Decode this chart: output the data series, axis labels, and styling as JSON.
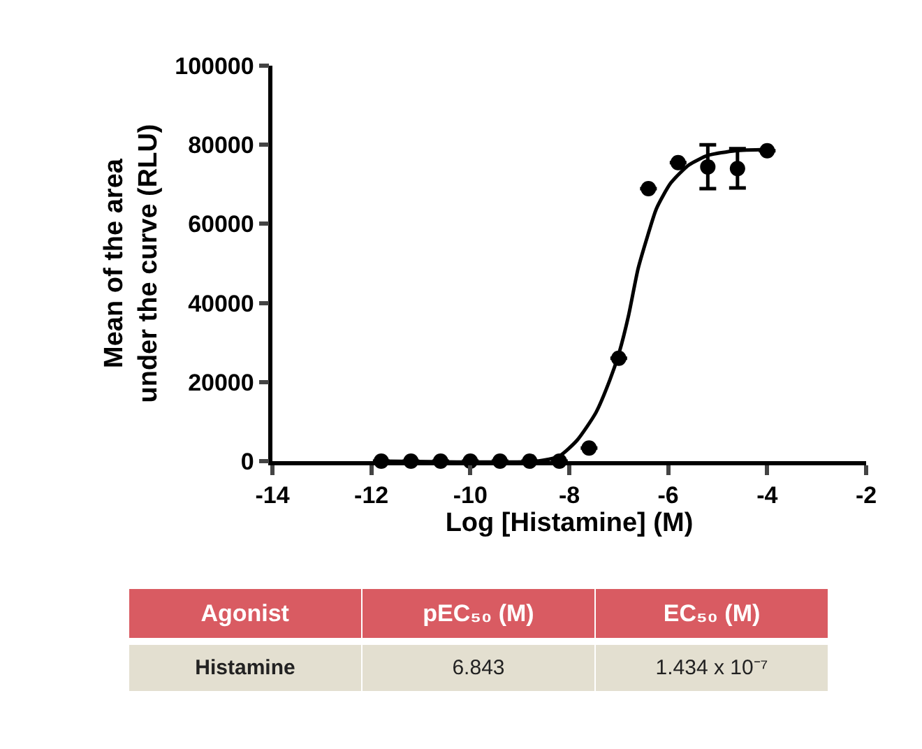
{
  "chart_data": {
    "type": "scatter",
    "xlabel": "Log [Histamine] (M)",
    "ylabel": "Mean of the area\nunder the curve (RLU)",
    "xlim": [
      -14,
      -2
    ],
    "xticks": [
      -14,
      -12,
      -10,
      -8,
      -6,
      -4,
      -2
    ],
    "ylim": [
      0,
      100000
    ],
    "yticks": [
      0,
      20000,
      40000,
      60000,
      80000,
      100000
    ],
    "marker": "circle",
    "series": [
      {
        "color": "#000000",
        "x": [
          -11.8,
          -11.2,
          -10.6,
          -10.0,
          -9.4,
          -8.8,
          -8.2,
          -7.6,
          -7.0,
          -6.4,
          -5.8,
          -5.2,
          -4.6,
          -4.0
        ],
        "values": [
          0,
          0,
          0,
          0,
          0,
          0,
          0,
          3300,
          26000,
          68900,
          75500,
          74400,
          74000,
          78500
        ],
        "errors": [
          null,
          null,
          null,
          null,
          null,
          null,
          null,
          null,
          null,
          null,
          null,
          [
            68900,
            80000
          ],
          [
            69100,
            79000
          ],
          null
        ]
      },
      {
        "type": "line",
        "color": "#000000",
        "line_style": "solid",
        "marker": "none",
        "x": [
          -11.8,
          -8.64,
          -8.21,
          -7.84,
          -7.46,
          -7.18,
          -6.99,
          -6.8,
          -6.61,
          -6.42,
          -6.24,
          -5.95,
          -5.58,
          -5.2,
          -4.64,
          -4.0
        ],
        "values": [
          0,
          0,
          1200,
          5300,
          12300,
          20500,
          27500,
          36900,
          48600,
          56800,
          63800,
          70300,
          74900,
          77300,
          78500,
          78800
        ]
      }
    ],
    "annotations": [
      "Agonist",
      "pEC₅₀ (M)",
      "EC₅₀ (M)",
      "Histamine",
      "6.843",
      "1.434 x 10⁻⁷"
    ]
  }
}
